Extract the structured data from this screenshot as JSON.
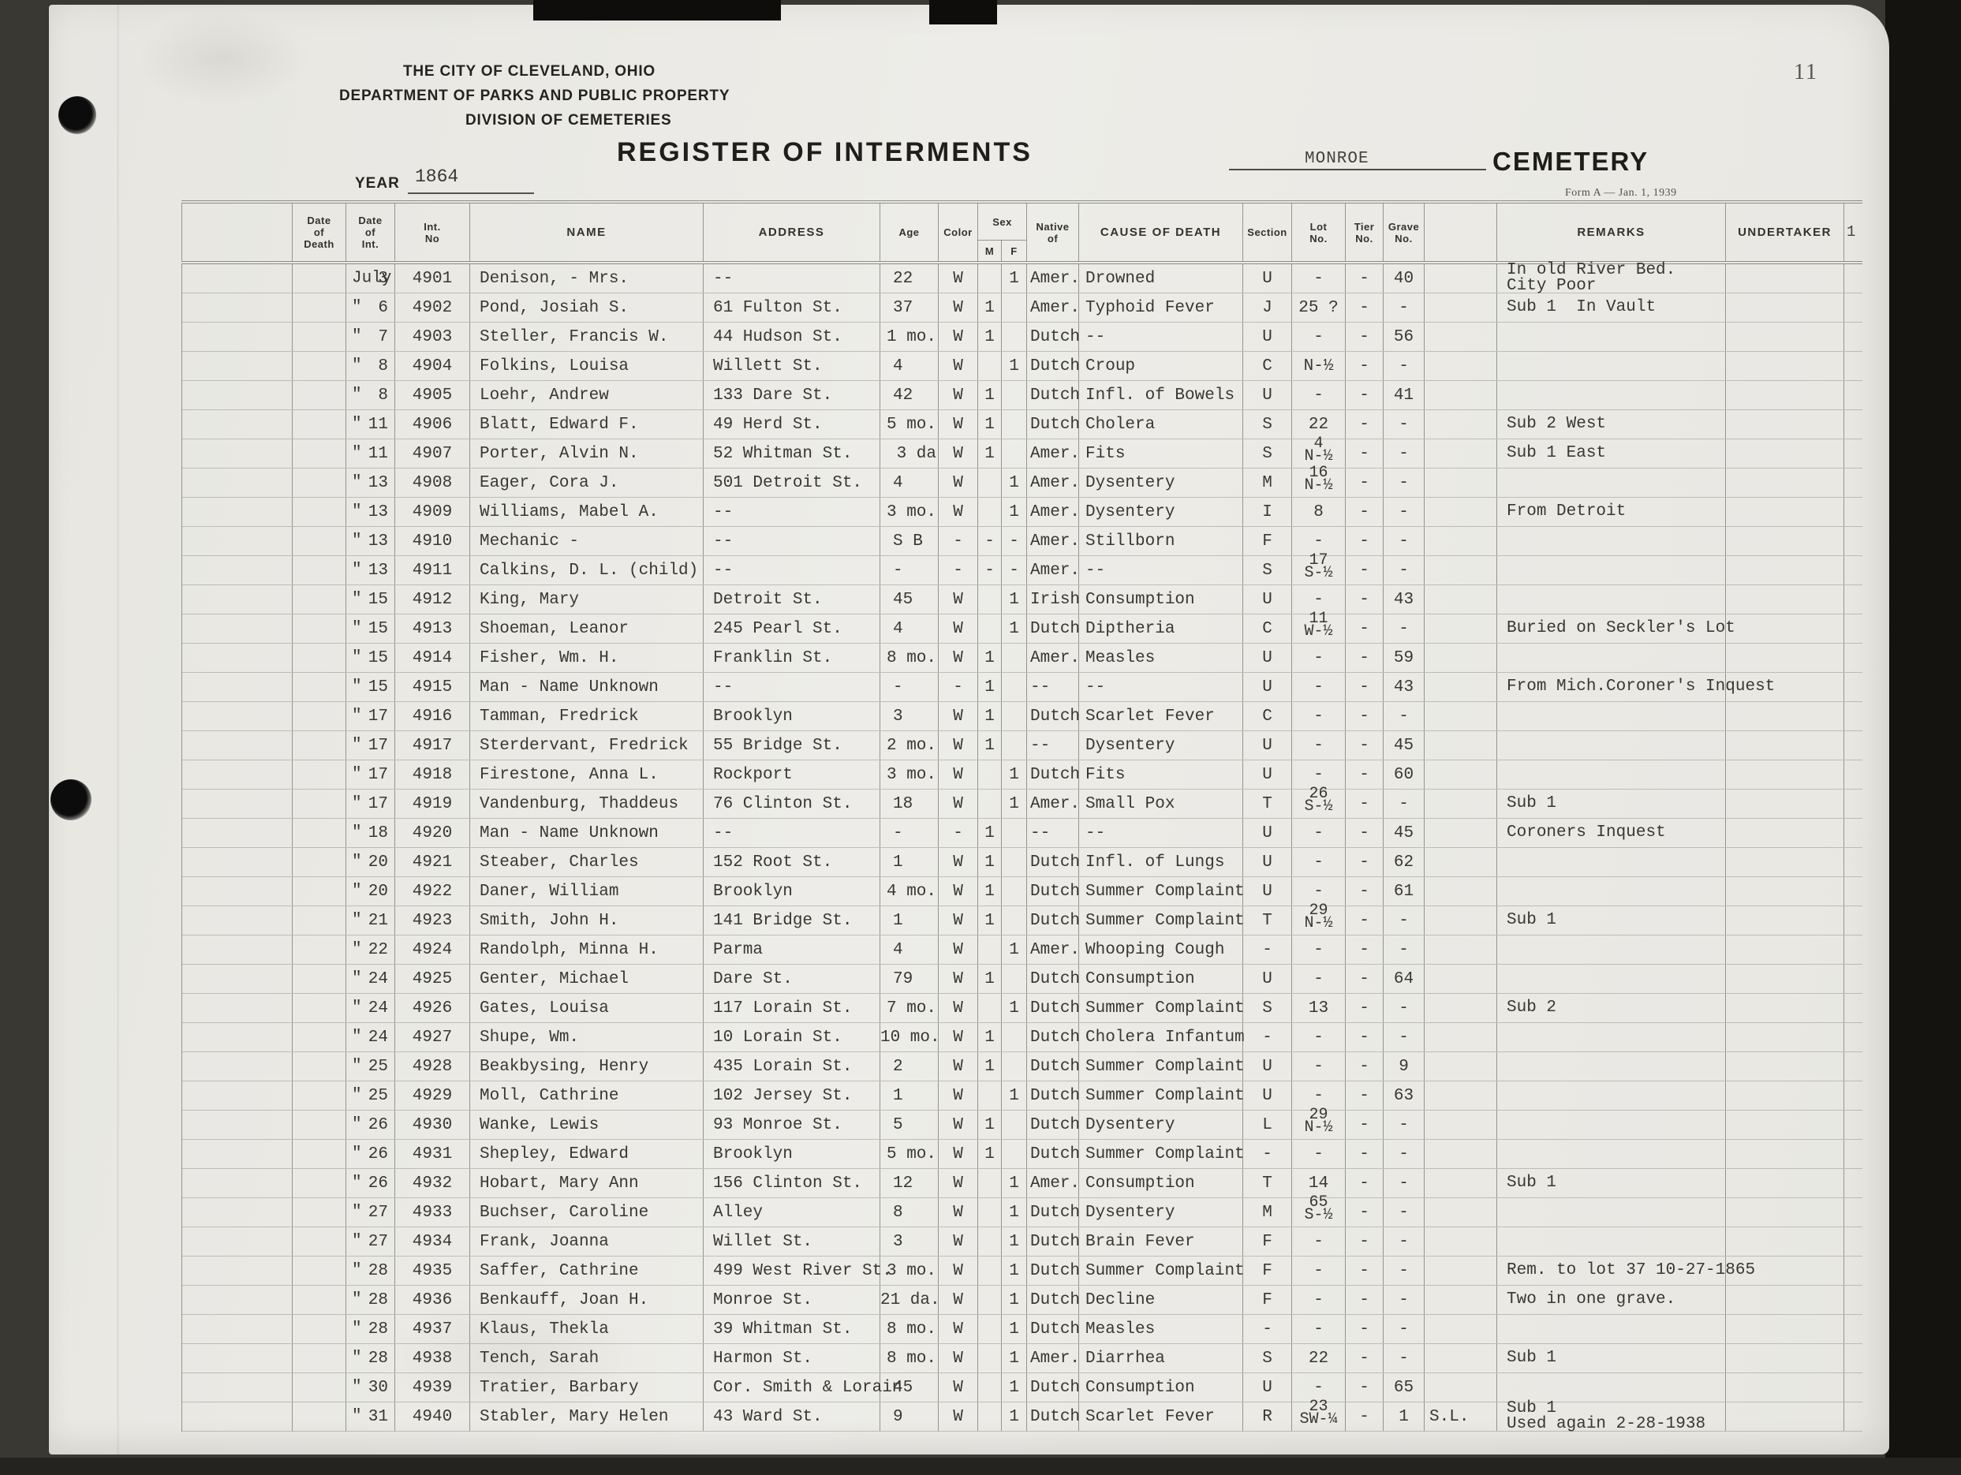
{
  "page": {
    "number": "11",
    "agency_lines": [
      "THE CITY OF CLEVELAND, OHIO",
      "DEPARTMENT OF PARKS AND PUBLIC PROPERTY",
      "DIVISION OF CEMETERIES"
    ],
    "title": "REGISTER OF INTERMENTS",
    "year_label": "YEAR",
    "year_value": "1864",
    "cemetery_name": "MONROE",
    "cemetery_label": "CEMETERY",
    "form_note": "Form A — Jan. 1, 1939",
    "edge_mark": "1"
  },
  "table": {
    "headers": {
      "date_of_death": "Date\nof\nDeath",
      "date_of_int": "Date\nof\nInt.",
      "int_no": "Int.\nNo",
      "name": "NAME",
      "address": "ADDRESS",
      "age": "Age",
      "color": "Color",
      "sex": "Sex",
      "m": "M",
      "f": "F",
      "native_of": "Native\nof",
      "cause": "CAUSE OF DEATH",
      "section": "Section",
      "lot": "Lot\nNo.",
      "tier": "Tier\nNo.",
      "grave": "Grave\nNo.",
      "remarks": "REMARKS",
      "undertaker": "UNDERTAKER"
    },
    "rows": [
      {
        "di": "July 3",
        "no": "4901",
        "name": "Denison, - Mrs.",
        "addr": "--",
        "age": "22",
        "color": "W",
        "m": "",
        "f": "1",
        "nat": "Amer.",
        "cause": "Drowned",
        "sec": "U",
        "lot": "-",
        "tier": "-",
        "grv": "40",
        "ext": "",
        "rem": "In old River Bed.\nCity Poor"
      },
      {
        "di": "″ 6",
        "no": "4902",
        "name": "Pond, Josiah S.",
        "addr": "61 Fulton St.",
        "age": "37",
        "color": "W",
        "m": "1",
        "f": "",
        "nat": "Amer.",
        "cause": "Typhoid Fever",
        "sec": "J",
        "lot": "25 ?",
        "tier": "-",
        "grv": "-",
        "ext": "",
        "rem": "Sub 1  In Vault"
      },
      {
        "di": "″ 7",
        "no": "4903",
        "name": "Steller, Francis W.",
        "addr": "44 Hudson St.",
        "age": "1 mo.",
        "color": "W",
        "m": "1",
        "f": "",
        "nat": "Dutch",
        "cause": "--",
        "sec": "U",
        "lot": "-",
        "tier": "-",
        "grv": "56",
        "ext": "",
        "rem": ""
      },
      {
        "di": "″ 8",
        "no": "4904",
        "name": "Folkins, Louisa",
        "addr": "Willett St.",
        "age": "4",
        "color": "W",
        "m": "",
        "f": "1",
        "nat": "Dutch",
        "cause": "Croup",
        "sec": "C",
        "lot": "N-½",
        "tier": "-",
        "grv": "-",
        "ext": "",
        "rem": ""
      },
      {
        "di": "″ 8",
        "no": "4905",
        "name": "Loehr, Andrew",
        "addr": "133 Dare St.",
        "age": "42",
        "color": "W",
        "m": "1",
        "f": "",
        "nat": "Dutch",
        "cause": "Infl. of Bowels",
        "sec": "U",
        "lot": "-",
        "tier": "-",
        "grv": "41",
        "ext": "",
        "rem": ""
      },
      {
        "di": "″ 11",
        "no": "4906",
        "name": "Blatt, Edward F.",
        "addr": "49 Herd St.",
        "age": "5 mo.",
        "color": "W",
        "m": "1",
        "f": "",
        "nat": "Dutch",
        "cause": "Cholera",
        "sec": "S",
        "lot": "22",
        "tier": "-",
        "grv": "-",
        "ext": "",
        "rem": "Sub 2 West"
      },
      {
        "di": "″ 11",
        "no": "4907",
        "name": "Porter, Alvin N.",
        "addr": "52 Whitman St.",
        "age": "3 da",
        "color": "W",
        "m": "1",
        "f": "",
        "nat": "Amer.",
        "cause": "Fits",
        "sec": "S",
        "lot": "4\nN-½",
        "tier": "-",
        "grv": "-",
        "ext": "",
        "rem": "Sub 1 East"
      },
      {
        "di": "″ 13",
        "no": "4908",
        "name": "Eager, Cora J.",
        "addr": "501 Detroit St.",
        "age": "4",
        "color": "W",
        "m": "",
        "f": "1",
        "nat": "Amer.",
        "cause": "Dysentery",
        "sec": "M",
        "lot": "16\nN-½",
        "tier": "-",
        "grv": "-",
        "ext": "",
        "rem": ""
      },
      {
        "di": "″ 13",
        "no": "4909",
        "name": "Williams, Mabel A.",
        "addr": "--",
        "age": "3 mo.",
        "color": "W",
        "m": "",
        "f": "1",
        "nat": "Amer.",
        "cause": "Dysentery",
        "sec": "I",
        "lot": "8",
        "tier": "-",
        "grv": "-",
        "ext": "",
        "rem": "From Detroit"
      },
      {
        "di": "″ 13",
        "no": "4910",
        "name": "Mechanic -",
        "addr": "--",
        "age": "S B",
        "color": "-",
        "m": "-",
        "f": "-",
        "nat": "Amer.",
        "cause": "Stillborn",
        "sec": "F",
        "lot": "-",
        "tier": "-",
        "grv": "-",
        "ext": "",
        "rem": ""
      },
      {
        "di": "″ 13",
        "no": "4911",
        "name": "Calkins, D. L. (child)",
        "addr": "--",
        "age": "-",
        "color": "-",
        "m": "-",
        "f": "-",
        "nat": "Amer.",
        "cause": "--",
        "sec": "S",
        "lot": "17\nS-½",
        "tier": "-",
        "grv": "-",
        "ext": "",
        "rem": ""
      },
      {
        "di": "″ 15",
        "no": "4912",
        "name": "King, Mary",
        "addr": "Detroit St.",
        "age": "45",
        "color": "W",
        "m": "",
        "f": "1",
        "nat": "Irish",
        "cause": "Consumption",
        "sec": "U",
        "lot": "-",
        "tier": "-",
        "grv": "43",
        "ext": "",
        "rem": ""
      },
      {
        "di": "″ 15",
        "no": "4913",
        "name": "Shoeman, Leanor",
        "addr": "245 Pearl St.",
        "age": "4",
        "color": "W",
        "m": "",
        "f": "1",
        "nat": "Dutch",
        "cause": "Diptheria",
        "sec": "C",
        "lot": "11\nW-½",
        "tier": "-",
        "grv": "-",
        "ext": "",
        "rem": "Buried on Seckler's Lot"
      },
      {
        "di": "″ 15",
        "no": "4914",
        "name": "Fisher, Wm. H.",
        "addr": "Franklin St.",
        "age": "8 mo.",
        "color": "W",
        "m": "1",
        "f": "",
        "nat": "Amer.",
        "cause": "Measles",
        "sec": "U",
        "lot": "-",
        "tier": "-",
        "grv": "59",
        "ext": "",
        "rem": ""
      },
      {
        "di": "″ 15",
        "no": "4915",
        "name": "Man - Name Unknown",
        "addr": "--",
        "age": "-",
        "color": "-",
        "m": "1",
        "f": "",
        "nat": "--",
        "cause": "--",
        "sec": "U",
        "lot": "-",
        "tier": "-",
        "grv": "43",
        "ext": "",
        "rem": "From Mich.Coroner's Inquest"
      },
      {
        "di": "″ 17",
        "no": "4916",
        "name": "Tamman, Fredrick",
        "addr": "Brooklyn",
        "age": "3",
        "color": "W",
        "m": "1",
        "f": "",
        "nat": "Dutch",
        "cause": "Scarlet Fever",
        "sec": "C",
        "lot": "-",
        "tier": "-",
        "grv": "-",
        "ext": "",
        "rem": ""
      },
      {
        "di": "″ 17",
        "no": "4917",
        "name": "Sterdervant, Fredrick",
        "addr": "55 Bridge St.",
        "age": "2 mo.",
        "color": "W",
        "m": "1",
        "f": "",
        "nat": "--",
        "cause": "Dysentery",
        "sec": "U",
        "lot": "-",
        "tier": "-",
        "grv": "45",
        "ext": "",
        "rem": ""
      },
      {
        "di": "″ 17",
        "no": "4918",
        "name": "Firestone, Anna L.",
        "addr": "Rockport",
        "age": "3 mo.",
        "color": "W",
        "m": "",
        "f": "1",
        "nat": "Dutch",
        "cause": "Fits",
        "sec": "U",
        "lot": "-",
        "tier": "-",
        "grv": "60",
        "ext": "",
        "rem": ""
      },
      {
        "di": "″ 17",
        "no": "4919",
        "name": "Vandenburg, Thaddeus",
        "addr": "76 Clinton St.",
        "age": "18",
        "color": "W",
        "m": "",
        "f": "1",
        "nat": "Amer.",
        "cause": "Small Pox",
        "sec": "T",
        "lot": "26\nS-½",
        "tier": "-",
        "grv": "-",
        "ext": "",
        "rem": "Sub 1"
      },
      {
        "di": "″ 18",
        "no": "4920",
        "name": "Man - Name Unknown",
        "addr": "--",
        "age": "-",
        "color": "-",
        "m": "1",
        "f": "",
        "nat": "--",
        "cause": "--",
        "sec": "U",
        "lot": "-",
        "tier": "-",
        "grv": "45",
        "ext": "",
        "rem": "Coroners Inquest"
      },
      {
        "di": "″ 20",
        "no": "4921",
        "name": "Steaber, Charles",
        "addr": "152 Root St.",
        "age": "1",
        "color": "W",
        "m": "1",
        "f": "",
        "nat": "Dutch",
        "cause": "Infl. of Lungs",
        "sec": "U",
        "lot": "-",
        "tier": "-",
        "grv": "62",
        "ext": "",
        "rem": ""
      },
      {
        "di": "″ 20",
        "no": "4922",
        "name": "Daner, William",
        "addr": "Brooklyn",
        "age": "4 mo.",
        "color": "W",
        "m": "1",
        "f": "",
        "nat": "Dutch",
        "cause": "Summer Complaint",
        "sec": "U",
        "lot": "-",
        "tier": "-",
        "grv": "61",
        "ext": "",
        "rem": ""
      },
      {
        "di": "″ 21",
        "no": "4923",
        "name": "Smith, John H.",
        "addr": "141 Bridge St.",
        "age": "1",
        "color": "W",
        "m": "1",
        "f": "",
        "nat": "Dutch",
        "cause": "Summer Complaint",
        "sec": "T",
        "lot": "29\nN-½",
        "tier": "-",
        "grv": "-",
        "ext": "",
        "rem": "Sub 1"
      },
      {
        "di": "″ 22",
        "no": "4924",
        "name": "Randolph, Minna H.",
        "addr": "Parma",
        "age": "4",
        "color": "W",
        "m": "",
        "f": "1",
        "nat": "Amer.",
        "cause": "Whooping Cough",
        "sec": "-",
        "lot": "-",
        "tier": "-",
        "grv": "-",
        "ext": "",
        "rem": ""
      },
      {
        "di": "″ 24",
        "no": "4925",
        "name": "Genter, Michael",
        "addr": "Dare St.",
        "age": "79",
        "color": "W",
        "m": "1",
        "f": "",
        "nat": "Dutch",
        "cause": "Consumption",
        "sec": "U",
        "lot": "-",
        "tier": "-",
        "grv": "64",
        "ext": "",
        "rem": ""
      },
      {
        "di": "″ 24",
        "no": "4926",
        "name": "Gates, Louisa",
        "addr": "117 Lorain St.",
        "age": "7 mo.",
        "color": "W",
        "m": "",
        "f": "1",
        "nat": "Dutch",
        "cause": "Summer Complaint",
        "sec": "S",
        "lot": "13",
        "tier": "-",
        "grv": "-",
        "ext": "",
        "rem": "Sub 2"
      },
      {
        "di": "″ 24",
        "no": "4927",
        "name": "Shupe, Wm.",
        "addr": "10 Lorain St.",
        "age": "10 mo.",
        "color": "W",
        "m": "1",
        "f": "",
        "nat": "Dutch",
        "cause": "Cholera Infantum",
        "sec": "-",
        "lot": "-",
        "tier": "-",
        "grv": "-",
        "ext": "",
        "rem": ""
      },
      {
        "di": "″ 25",
        "no": "4928",
        "name": "Beakbysing, Henry",
        "addr": "435 Lorain St.",
        "age": "2",
        "color": "W",
        "m": "1",
        "f": "",
        "nat": "Dutch",
        "cause": "Summer Complaint",
        "sec": "U",
        "lot": "-",
        "tier": "-",
        "grv": "9",
        "ext": "",
        "rem": ""
      },
      {
        "di": "″ 25",
        "no": "4929",
        "name": "Moll, Cathrine",
        "addr": "102 Jersey St.",
        "age": "1",
        "color": "W",
        "m": "",
        "f": "1",
        "nat": "Dutch",
        "cause": "Summer Complaint",
        "sec": "U",
        "lot": "-",
        "tier": "-",
        "grv": "63",
        "ext": "",
        "rem": ""
      },
      {
        "di": "″ 26",
        "no": "4930",
        "name": "Wanke, Lewis",
        "addr": "93 Monroe St.",
        "age": "5",
        "color": "W",
        "m": "1",
        "f": "",
        "nat": "Dutch",
        "cause": "Dysentery",
        "sec": "L",
        "lot": "29\nN-½",
        "tier": "-",
        "grv": "-",
        "ext": "",
        "rem": ""
      },
      {
        "di": "″ 26",
        "no": "4931",
        "name": "Shepley, Edward",
        "addr": "Brooklyn",
        "age": "5 mo.",
        "color": "W",
        "m": "1",
        "f": "",
        "nat": "Dutch",
        "cause": "Summer Complaint",
        "sec": "-",
        "lot": "-",
        "tier": "-",
        "grv": "-",
        "ext": "",
        "rem": ""
      },
      {
        "di": "″ 26",
        "no": "4932",
        "name": "Hobart, Mary Ann",
        "addr": "156 Clinton St.",
        "age": "12",
        "color": "W",
        "m": "",
        "f": "1",
        "nat": "Amer.",
        "cause": "Consumption",
        "sec": "T",
        "lot": "14",
        "tier": "-",
        "grv": "-",
        "ext": "",
        "rem": "Sub 1"
      },
      {
        "di": "″ 27",
        "no": "4933",
        "name": "Buchser, Caroline",
        "addr": "Alley",
        "age": "8",
        "color": "W",
        "m": "",
        "f": "1",
        "nat": "Dutch",
        "cause": "Dysentery",
        "sec": "M",
        "lot": "65\nS-½",
        "tier": "-",
        "grv": "-",
        "ext": "",
        "rem": ""
      },
      {
        "di": "″ 27",
        "no": "4934",
        "name": "Frank, Joanna",
        "addr": "Willet St.",
        "age": "3",
        "color": "W",
        "m": "",
        "f": "1",
        "nat": "Dutch",
        "cause": "Brain Fever",
        "sec": "F",
        "lot": "-",
        "tier": "-",
        "grv": "-",
        "ext": "",
        "rem": ""
      },
      {
        "di": "″ 28",
        "no": "4935",
        "name": "Saffer, Cathrine",
        "addr": "499 West River St.",
        "age": "3 mo.",
        "color": "W",
        "m": "",
        "f": "1",
        "nat": "Dutch",
        "cause": "Summer Complaint",
        "sec": "F",
        "lot": "-",
        "tier": "-",
        "grv": "-",
        "ext": "",
        "rem": "Rem. to lot 37 10-27-1865"
      },
      {
        "di": "″ 28",
        "no": "4936",
        "name": "Benkauff, Joan H.",
        "addr": "Monroe St.",
        "age": "21 da.",
        "color": "W",
        "m": "",
        "f": "1",
        "nat": "Dutch",
        "cause": "Decline",
        "sec": "F",
        "lot": "-",
        "tier": "-",
        "grv": "-",
        "ext": "",
        "rem": "Two in one grave."
      },
      {
        "di": "″ 28",
        "no": "4937",
        "name": "Klaus, Thekla",
        "addr": "39 Whitman St.",
        "age": "8 mo.",
        "color": "W",
        "m": "",
        "f": "1",
        "nat": "Dutch",
        "cause": "Measles",
        "sec": "-",
        "lot": "-",
        "tier": "-",
        "grv": "-",
        "ext": "",
        "rem": ""
      },
      {
        "di": "″ 28",
        "no": "4938",
        "name": "Tench, Sarah",
        "addr": "Harmon St.",
        "age": "8 mo.",
        "color": "W",
        "m": "",
        "f": "1",
        "nat": "Amer.",
        "cause": "Diarrhea",
        "sec": "S",
        "lot": "22",
        "tier": "-",
        "grv": "-",
        "ext": "",
        "rem": "Sub 1"
      },
      {
        "di": "″ 30",
        "no": "4939",
        "name": "Tratier, Barbary",
        "addr": "Cor. Smith & Lorain",
        "age": "45",
        "color": "W",
        "m": "",
        "f": "1",
        "nat": "Dutch",
        "cause": "Consumption",
        "sec": "U",
        "lot": "-",
        "tier": "-",
        "grv": "65",
        "ext": "",
        "rem": ""
      },
      {
        "di": "″ 31",
        "no": "4940",
        "name": "Stabler, Mary Helen",
        "addr": "43 Ward St.",
        "age": "9",
        "color": "W",
        "m": "",
        "f": "1",
        "nat": "Dutch",
        "cause": "Scarlet Fever",
        "sec": "R",
        "lot": "23\nSW-¼",
        "tier": "-",
        "grv": "1",
        "ext": "S.L.",
        "rem": "Sub 1\nUsed again 2-28-1938"
      }
    ]
  }
}
